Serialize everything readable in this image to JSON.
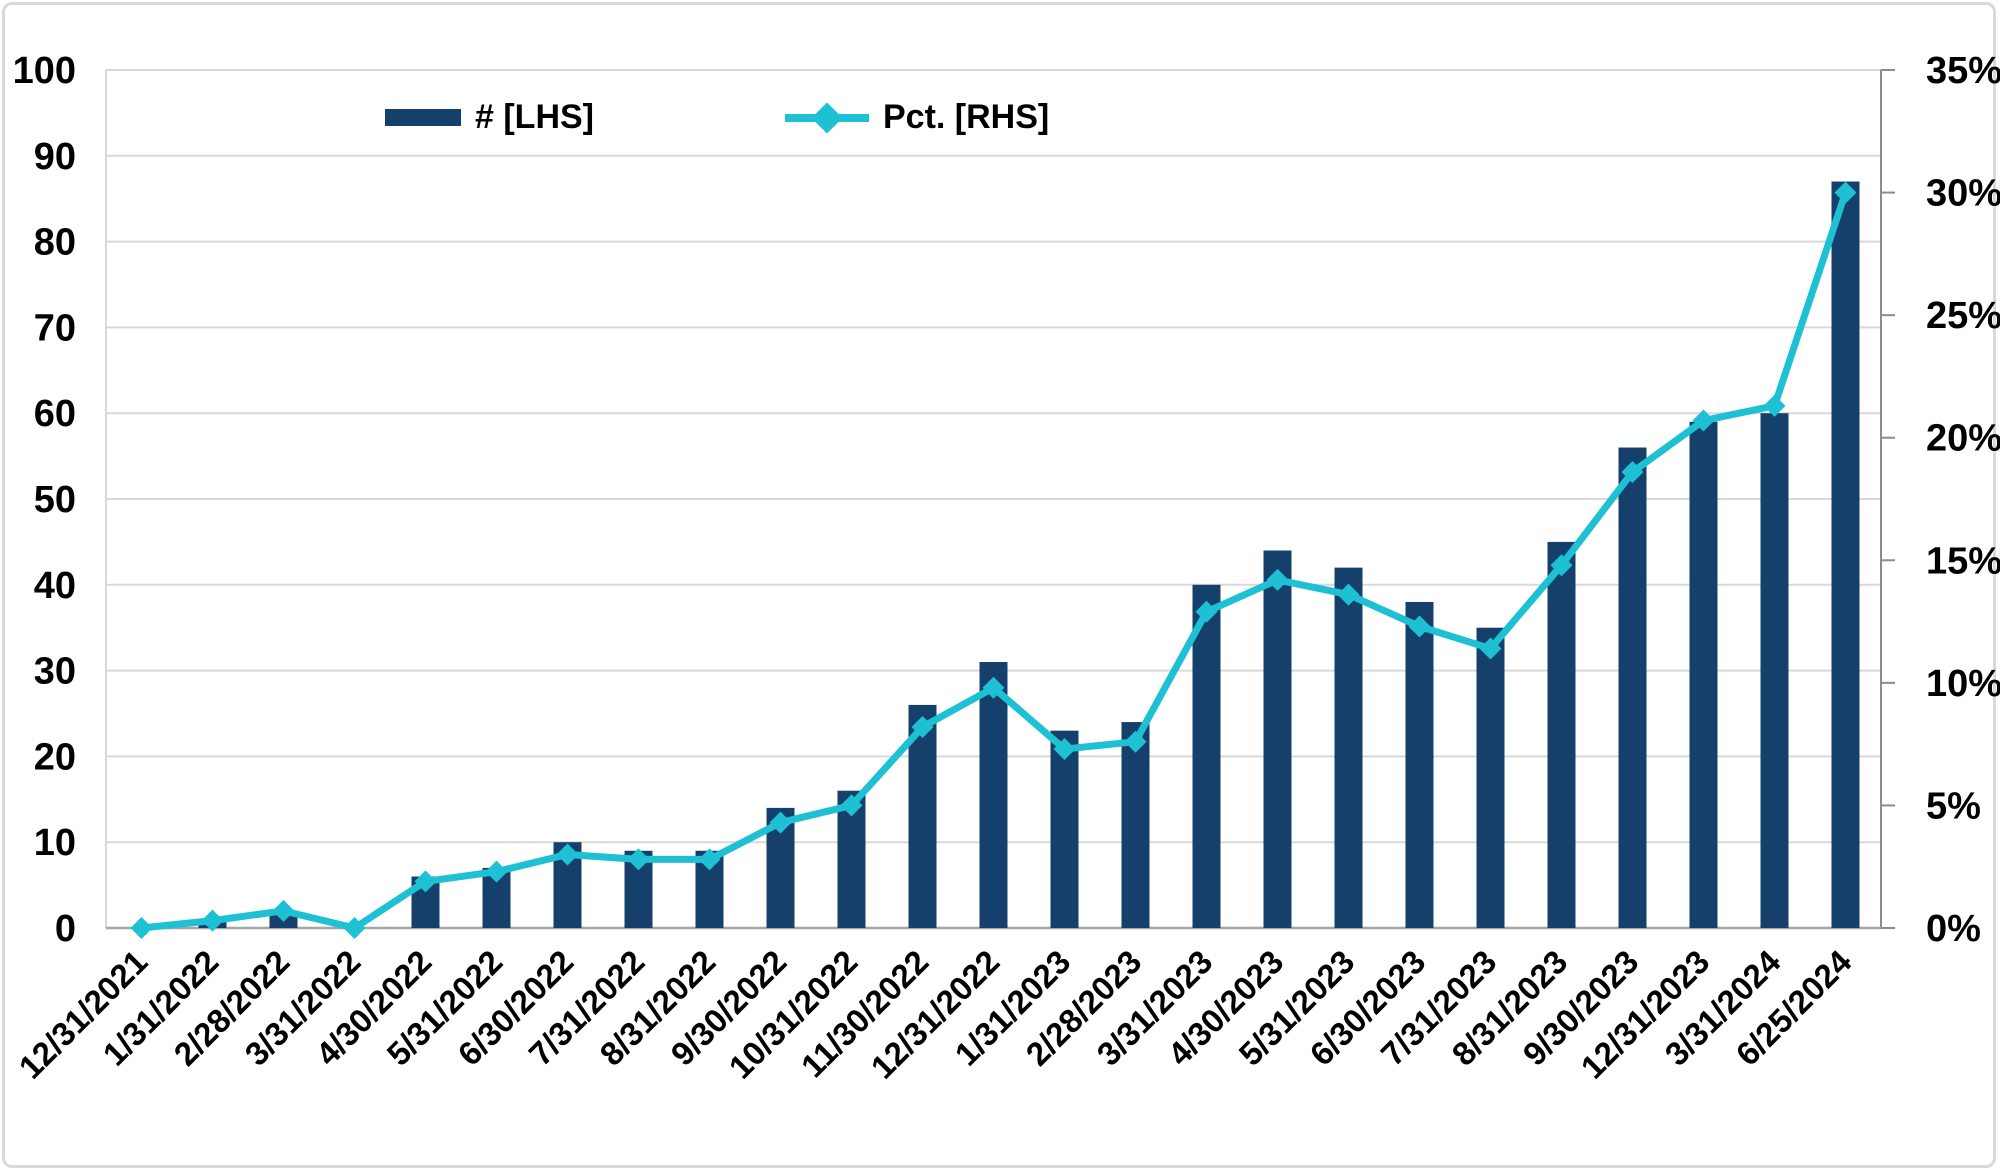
{
  "chart_data": {
    "type": "combo-bar-line",
    "title": "",
    "categories": [
      "12/31/2021",
      "1/31/2022",
      "2/28/2022",
      "3/31/2022",
      "4/30/2022",
      "5/31/2022",
      "6/30/2022",
      "7/31/2022",
      "8/31/2022",
      "9/30/2022",
      "10/31/2022",
      "11/30/2022",
      "12/31/2022",
      "1/31/2023",
      "2/28/2023",
      "3/31/2023",
      "4/30/2023",
      "5/31/2023",
      "6/30/2023",
      "7/31/2023",
      "8/31/2023",
      "9/30/2023",
      "12/31/2023",
      "3/31/2024",
      "6/25/2024"
    ],
    "series": [
      {
        "name": "# [LHS]",
        "type": "bar",
        "axis": "left",
        "values": [
          0,
          1,
          2,
          0,
          6,
          7,
          10,
          9,
          9,
          14,
          16,
          26,
          31,
          23,
          24,
          40,
          44,
          42,
          38,
          35,
          45,
          56,
          59,
          60,
          87
        ]
      },
      {
        "name": "Pct. [RHS]",
        "type": "line",
        "axis": "right",
        "values": [
          0.0,
          0.3,
          0.7,
          0.0,
          1.9,
          2.3,
          3.0,
          2.8,
          2.8,
          4.3,
          5.0,
          8.2,
          9.8,
          7.3,
          7.6,
          12.9,
          14.2,
          13.6,
          12.3,
          11.4,
          14.8,
          18.6,
          20.7,
          21.3,
          30.0
        ]
      }
    ],
    "left_axis": {
      "min": 0,
      "max": 100,
      "step": 10,
      "ticks": [
        "0",
        "10",
        "20",
        "30",
        "40",
        "50",
        "60",
        "70",
        "80",
        "90",
        "100"
      ]
    },
    "right_axis": {
      "min": 0,
      "max": 35,
      "step": 5,
      "suffix": "%",
      "ticks": [
        "0%",
        "5%",
        "10%",
        "15%",
        "20%",
        "25%",
        "30%",
        "35%"
      ]
    },
    "xlabel": "",
    "ylabel": "",
    "grid": true,
    "x_label_rotation_deg": -45,
    "legend_position": "top-inside"
  },
  "legend": {
    "bar_label": "# [LHS]",
    "line_label": "Pct. [RHS]"
  },
  "colors": {
    "bar": "#15406b",
    "line": "#1ec0d4",
    "marker": "#1ec0d4",
    "grid": "#d9d9d9",
    "plot_left_border": "#d9d9d9",
    "bottom_axis": "#a6a6a6",
    "right_axis": "#8c8c8c",
    "text": "#000000",
    "frame_border": "#d9d9d9",
    "background": "#ffffff"
  }
}
